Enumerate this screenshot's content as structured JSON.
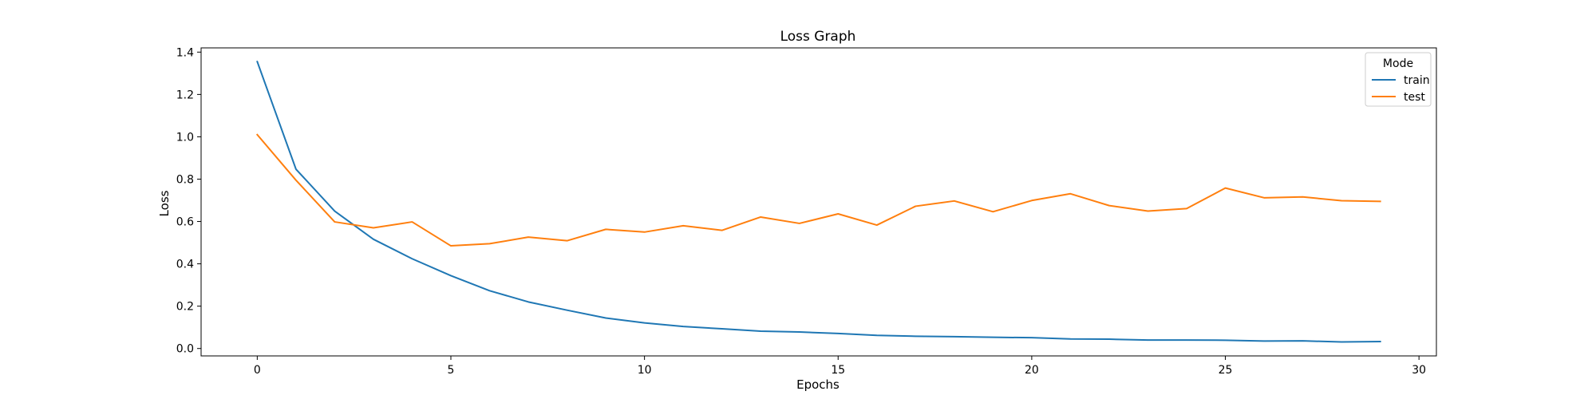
{
  "chart_data": {
    "type": "line",
    "title": "Loss Graph",
    "xlabel": "Epochs",
    "ylabel": "Loss",
    "xlim": [
      -1.45,
      30.45
    ],
    "ylim": [
      -0.035,
      1.42
    ],
    "xticks": [
      0,
      5,
      10,
      15,
      20,
      25,
      30
    ],
    "yticks": [
      0.0,
      0.2,
      0.4,
      0.6,
      0.8,
      1.0,
      1.2,
      1.4
    ],
    "grid": false,
    "legend": {
      "title": "Mode",
      "placement": "top-right"
    },
    "x": [
      0,
      1,
      2,
      3,
      4,
      5,
      6,
      7,
      8,
      9,
      10,
      11,
      12,
      13,
      14,
      15,
      16,
      17,
      18,
      19,
      20,
      21,
      22,
      23,
      24,
      25,
      26,
      27,
      28,
      29
    ],
    "series": [
      {
        "name": "train",
        "color": "#1f77b4",
        "values": [
          1.355,
          0.847,
          0.649,
          0.516,
          0.424,
          0.344,
          0.273,
          0.22,
          0.181,
          0.144,
          0.121,
          0.104,
          0.093,
          0.082,
          0.078,
          0.071,
          0.062,
          0.058,
          0.056,
          0.053,
          0.051,
          0.045,
          0.044,
          0.04,
          0.04,
          0.039,
          0.035,
          0.036,
          0.031,
          0.033
        ]
      },
      {
        "name": "test",
        "color": "#ff7f0e",
        "values": [
          1.01,
          0.795,
          0.598,
          0.57,
          0.598,
          0.485,
          0.495,
          0.526,
          0.509,
          0.563,
          0.55,
          0.58,
          0.558,
          0.621,
          0.591,
          0.636,
          0.583,
          0.672,
          0.697,
          0.646,
          0.699,
          0.731,
          0.675,
          0.649,
          0.661,
          0.758,
          0.712,
          0.716,
          0.698,
          0.695
        ]
      }
    ]
  }
}
